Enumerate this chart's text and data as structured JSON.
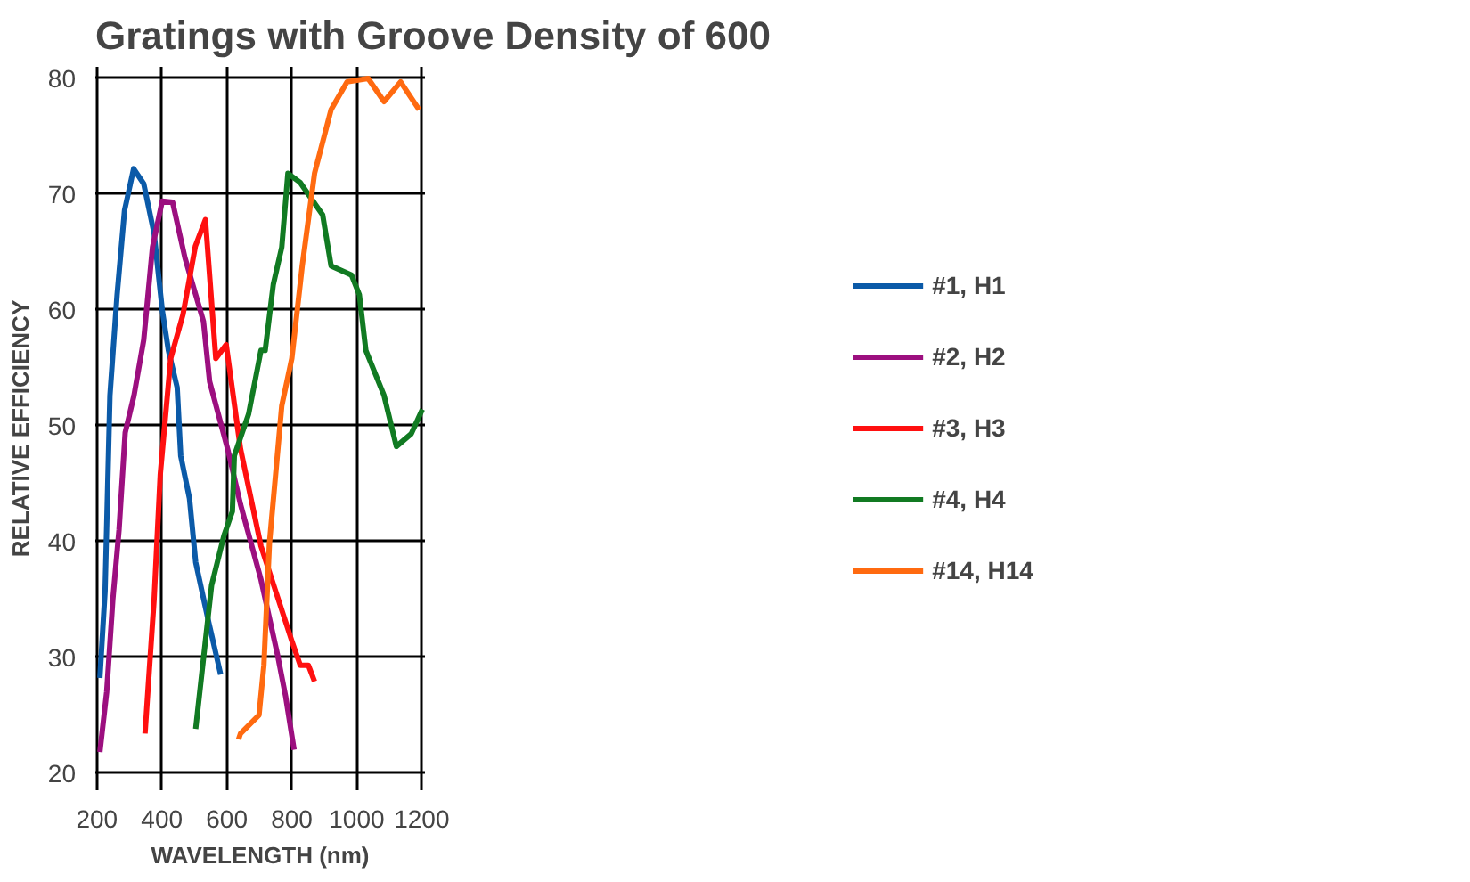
{
  "chart_data": {
    "type": "line",
    "title": "Gratings with Groove Density of 600",
    "xlabel": "WAVELENGTH (nm)",
    "ylabel": "RELATIVE EFFICIENCY",
    "xlim": [
      195,
      1210
    ],
    "ylim": [
      18.5,
      81
    ],
    "xticks": [
      200,
      400,
      600,
      800,
      1000,
      1200
    ],
    "yticks": [
      20,
      30,
      40,
      50,
      60,
      70,
      80
    ],
    "grid": true,
    "legend": "right",
    "marker": "none",
    "line_style": "solid",
    "series": [
      {
        "name": "#1, H1",
        "color": "#0b5aa8",
        "x": [
          209,
          225,
          240,
          262,
          285,
          313,
          344,
          376,
          401,
          420,
          447,
          458,
          485,
          504,
          541,
          581
        ],
        "values": [
          28.2,
          35.7,
          52.6,
          61.3,
          68.6,
          72.2,
          70.9,
          66.6,
          60,
          56.5,
          53.3,
          47.4,
          43.7,
          38.2,
          33.4,
          28.5
        ]
      },
      {
        "name": "#2, H2",
        "color": "#9c0f7f",
        "x": [
          209,
          230,
          249,
          268,
          287,
          314,
          344,
          371,
          401,
          433,
          471,
          528,
          547,
          604,
          642,
          705,
          756,
          781,
          807
        ],
        "values": [
          21.8,
          27,
          35,
          41,
          49.4,
          52.6,
          57.4,
          65.4,
          69.4,
          69.3,
          64.5,
          59,
          53.8,
          47.8,
          43.2,
          36.7,
          30.2,
          26.6,
          22
        ]
      },
      {
        "name": "#3, H3",
        "color": "#ff1010",
        "x": [
          348,
          376,
          395,
          427,
          465,
          503,
          534,
          566,
          598,
          642,
          705,
          800,
          826,
          851,
          870
        ],
        "values": [
          23.4,
          35,
          45.8,
          55.8,
          59.6,
          65.5,
          67.8,
          55.8,
          57,
          48,
          39.6,
          31.4,
          29.3,
          29.3,
          27.9
        ]
      },
      {
        "name": "#4, H4",
        "color": "#117a22",
        "x": [
          504,
          553,
          591,
          617,
          623,
          667,
          705,
          718,
          743,
          769,
          788,
          826,
          895,
          921,
          984,
          1008,
          1028,
          1084,
          1122,
          1168,
          1202
        ],
        "values": [
          23.8,
          36.2,
          40.5,
          42.6,
          47.4,
          51,
          56.5,
          56.5,
          62.2,
          65.4,
          71.8,
          71,
          68.2,
          63.8,
          63,
          61.3,
          56.5,
          52.6,
          48.2,
          49.3,
          51.4
        ]
      },
      {
        "name": "#14, H14",
        "color": "#ff6a10",
        "x": [
          636,
          642,
          699,
          714,
          731,
          769,
          800,
          832,
          870,
          921,
          970,
          1035,
          1084,
          1135,
          1192
        ],
        "values": [
          22.9,
          23.4,
          25,
          29.3,
          39.8,
          51.7,
          55.8,
          63.8,
          71.8,
          77.3,
          79.7,
          80,
          78,
          79.7,
          77.3
        ]
      }
    ]
  }
}
